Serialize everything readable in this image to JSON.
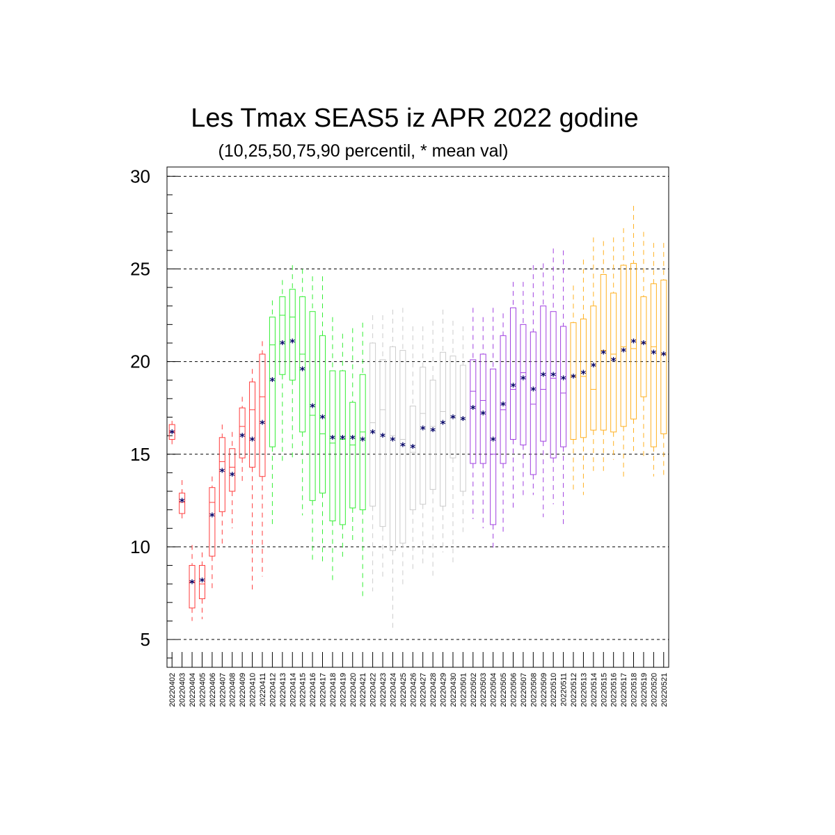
{
  "chart_data": {
    "type": "box",
    "title": "Les Tmax SEAS5 iz APR 2022 godine",
    "subtitle": "(10,25,50,75,90 percentil, * mean val)",
    "xlabel": "",
    "ylabel": "",
    "ylim": [
      3.5,
      30.5
    ],
    "yticks": [
      5,
      10,
      15,
      20,
      25,
      30
    ],
    "grid": "horizontal dashed at major ticks",
    "mean_marker": "*",
    "colors": {
      "apr_early": "#ff3b3b",
      "apr_late": "#33ee33",
      "apr_may": "#cccccc",
      "may_mid": "#a040e0",
      "may_late": "#ffb020",
      "mean": "#000066"
    },
    "series": [
      {
        "date": "20220402",
        "color": "#ff3b3b",
        "p10": 15.5,
        "p25": 15.8,
        "p50": 16.2,
        "p75": 16.6,
        "p90": 16.8,
        "mean": 16.2
      },
      {
        "date": "20220403",
        "color": "#ff3b3b",
        "p10": 11.4,
        "p25": 11.8,
        "p50": 12.4,
        "p75": 12.9,
        "p90": 13.6,
        "mean": 12.5
      },
      {
        "date": "20220404",
        "color": "#ff3b3b",
        "p10": 6.0,
        "p25": 6.7,
        "p50": 8.1,
        "p75": 9.0,
        "p90": 10.1,
        "mean": 8.1
      },
      {
        "date": "20220405",
        "color": "#ff3b3b",
        "p10": 6.1,
        "p25": 7.2,
        "p50": 8.0,
        "p75": 9.0,
        "p90": 9.7,
        "mean": 8.2
      },
      {
        "date": "20220406",
        "color": "#ff3b3b",
        "p10": 7.7,
        "p25": 9.5,
        "p50": 12.4,
        "p75": 13.2,
        "p90": 13.8,
        "mean": 11.7
      },
      {
        "date": "20220407",
        "color": "#ff3b3b",
        "p10": 10.0,
        "p25": 11.9,
        "p50": 14.6,
        "p75": 15.9,
        "p90": 16.6,
        "mean": 14.1
      },
      {
        "date": "20220408",
        "color": "#ff3b3b",
        "p10": 11.0,
        "p25": 13.0,
        "p50": 14.3,
        "p75": 15.3,
        "p90": 16.2,
        "mean": 13.9
      },
      {
        "date": "20220409",
        "color": "#ff3b3b",
        "p10": 13.5,
        "p25": 14.8,
        "p50": 16.5,
        "p75": 17.5,
        "p90": 18.1,
        "mean": 16.0
      },
      {
        "date": "20220410",
        "color": "#ff3b3b",
        "p10": 7.7,
        "p25": 14.3,
        "p50": 17.4,
        "p75": 18.9,
        "p90": 19.6,
        "mean": 15.8
      },
      {
        "date": "20220411",
        "color": "#ff3b3b",
        "p10": 8.4,
        "p25": 13.8,
        "p50": 18.1,
        "p75": 20.4,
        "p90": 21.1,
        "mean": 16.7
      },
      {
        "date": "20220412",
        "color": "#33ee33",
        "p10": 11.1,
        "p25": 15.4,
        "p50": 20.9,
        "p75": 22.4,
        "p90": 23.3,
        "mean": 19.0
      },
      {
        "date": "20220413",
        "color": "#33ee33",
        "p10": 14.5,
        "p25": 19.3,
        "p50": 22.5,
        "p75": 23.5,
        "p90": 24.4,
        "mean": 21.0
      },
      {
        "date": "20220414",
        "color": "#33ee33",
        "p10": 14.8,
        "p25": 19.0,
        "p50": 22.4,
        "p75": 23.9,
        "p90": 25.2,
        "mean": 21.1
      },
      {
        "date": "20220415",
        "color": "#33ee33",
        "p10": 11.7,
        "p25": 16.2,
        "p50": 20.4,
        "p75": 23.5,
        "p90": 25.0,
        "mean": 19.6
      },
      {
        "date": "20220416",
        "color": "#33ee33",
        "p10": 9.1,
        "p25": 12.5,
        "p50": 17.1,
        "p75": 22.7,
        "p90": 24.6,
        "mean": 17.6
      },
      {
        "date": "20220417",
        "color": "#33ee33",
        "p10": 9.2,
        "p25": 12.9,
        "p50": 16.1,
        "p75": 21.4,
        "p90": 24.6,
        "mean": 17.0
      },
      {
        "date": "20220418",
        "color": "#33ee33",
        "p10": 8.2,
        "p25": 11.4,
        "p50": 15.6,
        "p75": 19.5,
        "p90": 22.4,
        "mean": 15.9
      },
      {
        "date": "20220419",
        "color": "#33ee33",
        "p10": 9.3,
        "p25": 11.2,
        "p50": 15.8,
        "p75": 19.5,
        "p90": 21.5,
        "mean": 15.9
      },
      {
        "date": "20220420",
        "color": "#33ee33",
        "p10": 10.3,
        "p25": 12.1,
        "p50": 15.5,
        "p75": 17.8,
        "p90": 21.8,
        "mean": 15.9
      },
      {
        "date": "20220421",
        "color": "#33ee33",
        "p10": 7.3,
        "p25": 12.0,
        "p50": 16.2,
        "p75": 19.3,
        "p90": 22.1,
        "mean": 15.8
      },
      {
        "date": "20220422",
        "color": "#cccccc",
        "p10": 7.6,
        "p25": 12.2,
        "p50": 16.7,
        "p75": 21.0,
        "p90": 22.5,
        "mean": 16.2
      },
      {
        "date": "20220423",
        "color": "#cccccc",
        "p10": 8.3,
        "p25": 11.1,
        "p50": 17.4,
        "p75": 20.1,
        "p90": 22.5,
        "mean": 16.0
      },
      {
        "date": "20220424",
        "color": "#cccccc",
        "p10": 5.4,
        "p25": 9.8,
        "p50": 16.0,
        "p75": 20.8,
        "p90": 22.8,
        "mean": 15.8
      },
      {
        "date": "20220425",
        "color": "#cccccc",
        "p10": 7.9,
        "p25": 10.2,
        "p50": 15.8,
        "p75": 20.6,
        "p90": 22.9,
        "mean": 15.5
      },
      {
        "date": "20220426",
        "color": "#cccccc",
        "p10": 8.8,
        "p25": 12.0,
        "p50": 15.1,
        "p75": 17.6,
        "p90": 21.9,
        "mean": 15.4
      },
      {
        "date": "20220427",
        "color": "#cccccc",
        "p10": 9.0,
        "p25": 12.3,
        "p50": 17.2,
        "p75": 19.7,
        "p90": 21.9,
        "mean": 16.4
      },
      {
        "date": "20220428",
        "color": "#cccccc",
        "p10": 8.3,
        "p25": 13.1,
        "p50": 16.5,
        "p75": 19.0,
        "p90": 22.2,
        "mean": 16.3
      },
      {
        "date": "20220429",
        "color": "#cccccc",
        "p10": 9.7,
        "p25": 12.2,
        "p50": 17.3,
        "p75": 20.5,
        "p90": 22.8,
        "mean": 16.7
      },
      {
        "date": "20220430",
        "color": "#cccccc",
        "p10": 9.1,
        "p25": 14.8,
        "p50": 17.0,
        "p75": 20.3,
        "p90": 22.2,
        "mean": 17.0
      },
      {
        "date": "20220501",
        "color": "#cccccc",
        "p10": 10.8,
        "p25": 13.0,
        "p50": 16.9,
        "p75": 19.8,
        "p90": 21.9,
        "mean": 16.9
      },
      {
        "date": "20220502",
        "color": "#a040e0",
        "p10": 11.5,
        "p25": 14.5,
        "p50": 18.4,
        "p75": 20.1,
        "p90": 22.9,
        "mean": 17.5
      },
      {
        "date": "20220503",
        "color": "#a040e0",
        "p10": 11.0,
        "p25": 14.5,
        "p50": 17.9,
        "p75": 20.4,
        "p90": 22.4,
        "mean": 17.2
      },
      {
        "date": "20220504",
        "color": "#a040e0",
        "p10": 9.9,
        "p25": 11.2,
        "p50": 15.0,
        "p75": 19.6,
        "p90": 22.9,
        "mean": 15.8
      },
      {
        "date": "20220505",
        "color": "#a040e0",
        "p10": 10.8,
        "p25": 14.5,
        "p50": 17.4,
        "p75": 21.4,
        "p90": 22.6,
        "mean": 17.7
      },
      {
        "date": "20220506",
        "color": "#a040e0",
        "p10": 12.0,
        "p25": 15.8,
        "p50": 18.5,
        "p75": 22.9,
        "p90": 24.3,
        "mean": 18.7
      },
      {
        "date": "20220507",
        "color": "#a040e0",
        "p10": 12.6,
        "p25": 15.5,
        "p50": 19.4,
        "p75": 22.0,
        "p90": 24.3,
        "mean": 19.1
      },
      {
        "date": "20220508",
        "color": "#a040e0",
        "p10": 12.8,
        "p25": 13.9,
        "p50": 17.7,
        "p75": 21.6,
        "p90": 25.2,
        "mean": 18.5
      },
      {
        "date": "20220509",
        "color": "#a040e0",
        "p10": 11.6,
        "p25": 15.7,
        "p50": 18.5,
        "p75": 23.0,
        "p90": 25.3,
        "mean": 19.3
      },
      {
        "date": "20220510",
        "color": "#a040e0",
        "p10": 12.3,
        "p25": 14.8,
        "p50": 19.1,
        "p75": 22.7,
        "p90": 26.1,
        "mean": 19.3
      },
      {
        "date": "20220511",
        "color": "#a040e0",
        "p10": 11.2,
        "p25": 15.4,
        "p50": 18.3,
        "p75": 21.9,
        "p90": 26.0,
        "mean": 19.1
      },
      {
        "date": "20220512",
        "color": "#ffb020",
        "p10": 12.9,
        "p25": 15.8,
        "p50": 19.2,
        "p75": 22.1,
        "p90": 24.1,
        "mean": 19.2
      },
      {
        "date": "20220513",
        "color": "#ffb020",
        "p10": 12.8,
        "p25": 15.9,
        "p50": 19.2,
        "p75": 22.3,
        "p90": 25.5,
        "mean": 19.4
      },
      {
        "date": "20220514",
        "color": "#ffb020",
        "p10": 14.1,
        "p25": 16.3,
        "p50": 18.5,
        "p75": 23.0,
        "p90": 26.7,
        "mean": 19.8
      },
      {
        "date": "20220515",
        "color": "#ffb020",
        "p10": 14.1,
        "p25": 16.3,
        "p50": 20.6,
        "p75": 24.7,
        "p90": 26.5,
        "mean": 20.5
      },
      {
        "date": "20220516",
        "color": "#ffb020",
        "p10": 14.7,
        "p25": 16.2,
        "p50": 20.4,
        "p75": 23.7,
        "p90": 26.7,
        "mean": 20.1
      },
      {
        "date": "20220517",
        "color": "#ffb020",
        "p10": 13.6,
        "p25": 16.5,
        "p50": 20.8,
        "p75": 25.2,
        "p90": 27.2,
        "mean": 20.6
      },
      {
        "date": "20220518",
        "color": "#ffb020",
        "p10": 15.1,
        "p25": 16.9,
        "p50": 20.7,
        "p75": 25.3,
        "p90": 28.4,
        "mean": 21.1
      },
      {
        "date": "20220519",
        "color": "#ffb020",
        "p10": 14.8,
        "p25": 18.1,
        "p50": 21.0,
        "p75": 23.5,
        "p90": 27.0,
        "mean": 21.0
      },
      {
        "date": "20220520",
        "color": "#ffb020",
        "p10": 13.8,
        "p25": 15.4,
        "p50": 20.8,
        "p75": 24.2,
        "p90": 26.4,
        "mean": 20.5
      },
      {
        "date": "20220521",
        "color": "#ffb020",
        "p10": 13.7,
        "p25": 16.1,
        "p50": 20.4,
        "p75": 24.4,
        "p90": 26.4,
        "mean": 20.4
      }
    ]
  }
}
